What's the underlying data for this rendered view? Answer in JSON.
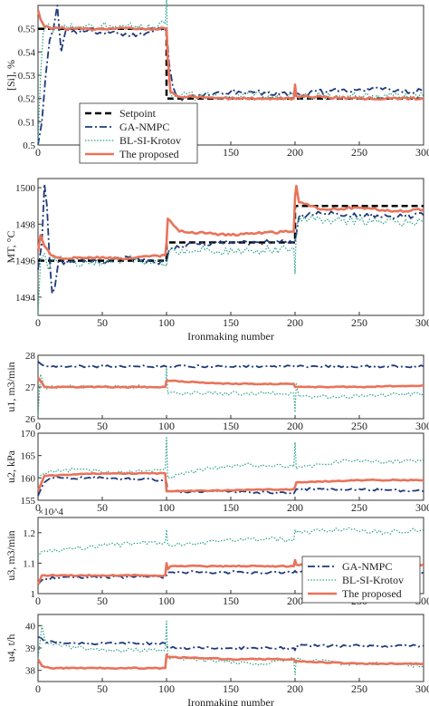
{
  "chart_data": [
    {
      "type": "line",
      "ylabel": "[Si], %",
      "xlim": [
        0,
        300
      ],
      "ylim": [
        0.5,
        0.56
      ],
      "xticks": [
        "0",
        "50",
        "100",
        "150",
        "200",
        "250",
        "300"
      ],
      "yticks": [
        "0.5",
        "0.51",
        "0.52",
        "0.53",
        "0.54",
        "0.55"
      ],
      "legend": [
        "Setpoint",
        "GA-NMPC",
        "BL-SI-Krotov",
        "The proposed"
      ],
      "legend_position": "bottom-left",
      "series": [
        {
          "name": "Setpoint",
          "x": [
            0,
            100,
            100.01,
            300
          ],
          "y": [
            0.55,
            0.55,
            0.52,
            0.52
          ]
        },
        {
          "name": "GA-NMPC",
          "x": [
            0,
            3,
            6,
            9,
            12,
            15,
            18,
            22,
            30,
            40,
            50,
            60,
            70,
            80,
            90,
            100,
            102,
            105,
            110,
            150,
            200,
            250,
            300
          ],
          "y": [
            0.5,
            0.51,
            0.53,
            0.545,
            0.55,
            0.56,
            0.54,
            0.55,
            0.548,
            0.55,
            0.548,
            0.549,
            0.547,
            0.548,
            0.549,
            0.55,
            0.535,
            0.525,
            0.52,
            0.523,
            0.522,
            0.524,
            0.523
          ]
        },
        {
          "name": "BL-SI-Krotov",
          "x": [
            0,
            2,
            4,
            6,
            10,
            30,
            60,
            90,
            99,
            100,
            101,
            103,
            110,
            150,
            200,
            250,
            300
          ],
          "y": [
            0.5,
            0.53,
            0.548,
            0.551,
            0.55,
            0.551,
            0.551,
            0.551,
            0.552,
            0.563,
            0.54,
            0.522,
            0.521,
            0.521,
            0.521,
            0.521,
            0.521
          ]
        },
        {
          "name": "The proposed",
          "x": [
            0,
            2,
            5,
            10,
            30,
            60,
            90,
            100,
            101,
            103,
            108,
            150,
            199,
            200,
            201,
            250,
            300
          ],
          "y": [
            0.558,
            0.554,
            0.551,
            0.55,
            0.55,
            0.55,
            0.55,
            0.55,
            0.537,
            0.523,
            0.521,
            0.52,
            0.52,
            0.526,
            0.521,
            0.52,
            0.52
          ]
        }
      ]
    },
    {
      "type": "line",
      "ylabel": "MT, °C",
      "xlabel": "Ironmaking number",
      "xlim": [
        0,
        300
      ],
      "ylim": [
        1493,
        1500.5
      ],
      "xticks": [
        "0",
        "50",
        "100",
        "150",
        "200",
        "250",
        "300"
      ],
      "yticks": [
        "1494",
        "1496",
        "1498",
        "1500"
      ],
      "series": [
        {
          "name": "Setpoint",
          "x": [
            0,
            100,
            100.01,
            200,
            200.01,
            300
          ],
          "y": [
            1496,
            1496,
            1497,
            1497,
            1499,
            1499
          ]
        },
        {
          "name": "GA-NMPC",
          "x": [
            0,
            3,
            5,
            7,
            9,
            11,
            13,
            16,
            20,
            30,
            50,
            70,
            90,
            100,
            102,
            120,
            150,
            180,
            200,
            203,
            220,
            250,
            280,
            300
          ],
          "y": [
            1495.5,
            1497,
            1500.2,
            1499,
            1496,
            1494.2,
            1494.5,
            1496,
            1495.8,
            1496.1,
            1495.9,
            1496.2,
            1495.9,
            1496,
            1496.6,
            1496.9,
            1497,
            1497,
            1497,
            1498.4,
            1498.6,
            1498.5,
            1498.4,
            1498.5
          ]
        },
        {
          "name": "BL-SI-Krotov",
          "x": [
            0,
            2,
            5,
            8,
            12,
            20,
            40,
            70,
            99,
            100,
            102,
            130,
            160,
            199,
            200,
            201,
            203,
            230,
            260,
            300
          ],
          "y": [
            1493,
            1496,
            1496.4,
            1495.5,
            1496.2,
            1496,
            1495.8,
            1496.1,
            1495.8,
            1495.7,
            1496.5,
            1496.6,
            1496.5,
            1496.7,
            1495.3,
            1497.8,
            1498.4,
            1498.2,
            1498.1,
            1498.1
          ]
        },
        {
          "name": "The proposed",
          "x": [
            0,
            2,
            5,
            10,
            20,
            40,
            70,
            99,
            100,
            101,
            110,
            130,
            150,
            170,
            199,
            200,
            201,
            203,
            220,
            250,
            280,
            300
          ],
          "y": [
            1496.5,
            1497.4,
            1496.8,
            1496.3,
            1496.1,
            1496.2,
            1496.1,
            1496.3,
            1497,
            1498.3,
            1497.6,
            1497.5,
            1497.4,
            1497.5,
            1497.6,
            1499.5,
            1500.1,
            1499.2,
            1498.8,
            1498.9,
            1498.7,
            1498.8
          ]
        }
      ]
    },
    {
      "type": "line",
      "ylabel": "u1, m3/min",
      "xlim": [
        0,
        300
      ],
      "ylim": [
        26,
        28
      ],
      "yticks": [
        "26",
        "27",
        "28"
      ],
      "xticks": [
        "0",
        "50",
        "100",
        "150",
        "200",
        "250",
        "300"
      ],
      "series": [
        {
          "name": "GA-NMPC",
          "x": [
            0,
            3,
            8,
            300
          ],
          "y": [
            27.8,
            27.7,
            27.65,
            27.65
          ]
        },
        {
          "name": "BL-SI-Krotov",
          "x": [
            0,
            2,
            5,
            50,
            99,
            100,
            101,
            150,
            199,
            200,
            201,
            203,
            250,
            300
          ],
          "y": [
            26.1,
            27.4,
            27.0,
            27.0,
            27.0,
            27.6,
            26.8,
            26.8,
            26.8,
            26.2,
            27.1,
            26.7,
            26.7,
            26.8
          ]
        },
        {
          "name": "The proposed",
          "x": [
            0,
            5,
            50,
            99,
            100,
            150,
            199,
            200,
            250,
            300
          ],
          "y": [
            27.3,
            27.0,
            27.0,
            27.0,
            27.2,
            27.1,
            27.1,
            27.0,
            27.0,
            27.05
          ]
        }
      ]
    },
    {
      "type": "line",
      "ylabel": "u2, kPa",
      "xlim": [
        0,
        300
      ],
      "ylim": [
        155,
        170
      ],
      "yticks": [
        "155",
        "160",
        "165",
        "170"
      ],
      "xticks": [
        "0",
        "50",
        "100",
        "150",
        "200",
        "250",
        "300"
      ],
      "series": [
        {
          "name": "GA-NMPC",
          "x": [
            0,
            5,
            10,
            50,
            99,
            100,
            101,
            150,
            199,
            200,
            201,
            250,
            300
          ],
          "y": [
            156,
            159,
            160,
            160,
            159.5,
            159,
            157,
            157,
            156.5,
            157,
            157.5,
            157.5,
            157
          ]
        },
        {
          "name": "BL-SI-Krotov",
          "x": [
            0,
            5,
            30,
            60,
            99,
            100,
            101,
            130,
            160,
            199,
            200,
            201,
            240,
            270,
            300
          ],
          "y": [
            160,
            161,
            162,
            161,
            162,
            169,
            160,
            162,
            163,
            162.5,
            168,
            162,
            164,
            163.5,
            164
          ]
        },
        {
          "name": "The proposed",
          "x": [
            0,
            5,
            50,
            99,
            100,
            101,
            150,
            199,
            200,
            201,
            250,
            300
          ],
          "y": [
            157,
            160.5,
            161,
            161,
            157,
            157,
            157.2,
            157.5,
            158,
            159,
            159.5,
            159.5
          ]
        }
      ]
    },
    {
      "type": "line",
      "ylabel": "u3, m3/min",
      "axis_multiplier": "×10^4",
      "xlim": [
        0,
        300
      ],
      "ylim": [
        1.0,
        1.25
      ],
      "yticks": [
        "1",
        "1.1",
        "1.2"
      ],
      "xticks": [
        "0",
        "50",
        "100",
        "150",
        "200",
        "250",
        "300"
      ],
      "legend": [
        "GA-NMPC",
        "BL-SI-Krotov",
        "The proposed"
      ],
      "legend_position": "bottom-right",
      "series": [
        {
          "name": "GA-NMPC",
          "x": [
            0,
            5,
            50,
            99,
            100,
            101,
            150,
            199,
            200,
            201,
            250,
            300
          ],
          "y": [
            1.03,
            1.05,
            1.055,
            1.055,
            1.06,
            1.07,
            1.07,
            1.07,
            1.075,
            1.07,
            1.07,
            1.07
          ]
        },
        {
          "name": "BL-SI-Krotov",
          "x": [
            0,
            5,
            30,
            60,
            99,
            100,
            101,
            140,
            180,
            199,
            200,
            201,
            240,
            270,
            300
          ],
          "y": [
            1.12,
            1.14,
            1.15,
            1.16,
            1.17,
            1.21,
            1.16,
            1.17,
            1.18,
            1.175,
            1.21,
            1.2,
            1.21,
            1.2,
            1.21
          ]
        },
        {
          "name": "The proposed",
          "x": [
            0,
            3,
            50,
            99,
            100,
            101,
            103,
            150,
            199,
            200,
            201,
            250,
            300
          ],
          "y": [
            1.03,
            1.06,
            1.06,
            1.06,
            1.1,
            1.08,
            1.09,
            1.09,
            1.09,
            1.11,
            1.095,
            1.095,
            1.095
          ]
        }
      ]
    },
    {
      "type": "line",
      "ylabel": "u4, t/h",
      "xlabel": "Ironmaking number",
      "xlim": [
        0,
        300
      ],
      "ylim": [
        37.5,
        40.5
      ],
      "yticks": [
        "38",
        "39",
        "40"
      ],
      "xticks": [
        "0",
        "50",
        "100",
        "150",
        "200",
        "250",
        "300"
      ],
      "series": [
        {
          "name": "GA-NMPC",
          "x": [
            0,
            5,
            30,
            60,
            99,
            100,
            101,
            150,
            199,
            200,
            201,
            250,
            300
          ],
          "y": [
            39.5,
            39.3,
            39.2,
            39.2,
            39.2,
            39.1,
            39.0,
            39.0,
            39.0,
            38.9,
            39.1,
            39.1,
            39.1
          ]
        },
        {
          "name": "BL-SI-Krotov",
          "x": [
            0,
            3,
            6,
            30,
            60,
            99,
            100,
            101,
            140,
            180,
            199,
            200,
            201,
            240,
            270,
            300
          ],
          "y": [
            38.5,
            40.0,
            39.2,
            39.0,
            38.9,
            38.9,
            40.2,
            38.6,
            38.4,
            38.3,
            38.5,
            37.8,
            38.5,
            38.3,
            38.3,
            38.2
          ]
        },
        {
          "name": "The proposed",
          "x": [
            0,
            3,
            10,
            50,
            99,
            100,
            101,
            150,
            199,
            200,
            201,
            250,
            300
          ],
          "y": [
            38.5,
            38.2,
            38.1,
            38.1,
            38.1,
            38.7,
            38.6,
            38.5,
            38.5,
            38.4,
            38.4,
            38.3,
            38.3
          ]
        }
      ]
    }
  ],
  "colors": {
    "setpoint": "#000000",
    "ga": "#1f3a7a",
    "bl": "#2aa089",
    "prop": "#e8735a",
    "axis": "#333333"
  }
}
